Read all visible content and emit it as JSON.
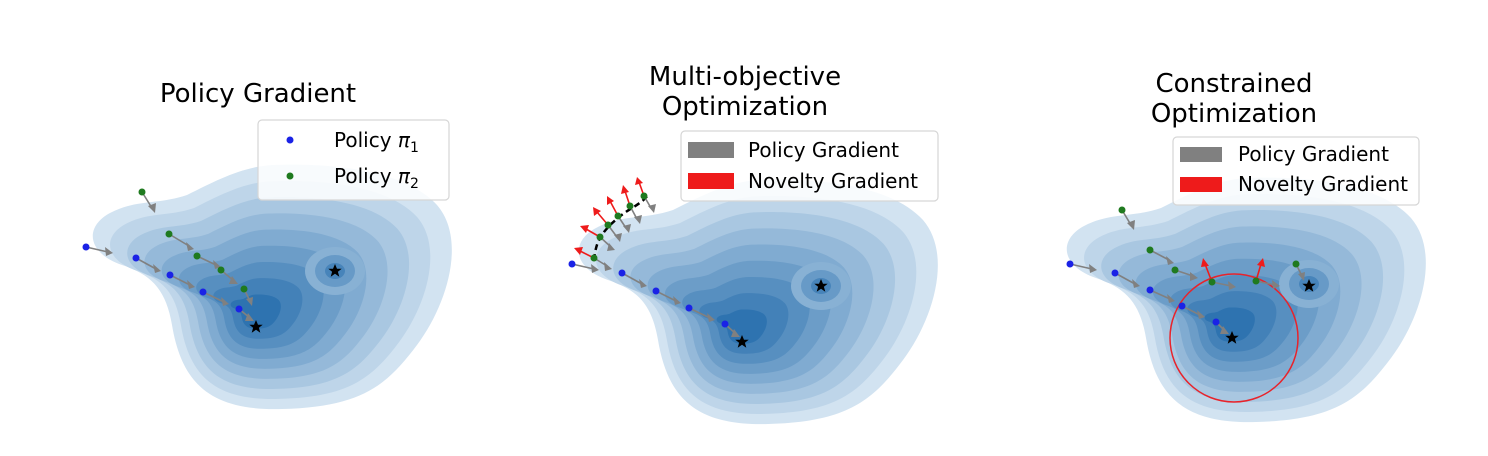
{
  "colors": {
    "policy_1": "#1a22e6",
    "policy_2": "#1f7a1f",
    "policy_gradient": "#808080",
    "novelty_gradient": "#ee1b1b",
    "contour_light": "#d2e3f1",
    "contour_dark": "#2e73b0",
    "constraint_circle": "#e8232b",
    "pareto_front": "#000000"
  },
  "panels": [
    {
      "title_lines": [
        "Policy Gradient"
      ],
      "legend": {
        "items": [
          {
            "kind": "dot",
            "color_key": "policy_1",
            "label": "Policy ",
            "symbol": "π",
            "subscript": "1"
          },
          {
            "kind": "dot",
            "color_key": "policy_2",
            "label": "Policy ",
            "symbol": "π",
            "subscript": "2"
          }
        ]
      }
    },
    {
      "title_lines": [
        "Multi-objective",
        "Optimization"
      ],
      "legend": {
        "items": [
          {
            "kind": "patch",
            "color_key": "policy_gradient",
            "label": "Policy Gradient"
          },
          {
            "kind": "patch",
            "color_key": "novelty_gradient",
            "label": "Novelty Gradient"
          }
        ]
      }
    },
    {
      "title_lines": [
        "Constrained",
        "Optimization"
      ],
      "legend": {
        "items": [
          {
            "kind": "patch",
            "color_key": "policy_gradient",
            "label": "Policy Gradient"
          },
          {
            "kind": "patch",
            "color_key": "novelty_gradient",
            "label": "Novelty Gradient"
          }
        ]
      }
    }
  ],
  "markers": {
    "optimum": "star-icon"
  }
}
